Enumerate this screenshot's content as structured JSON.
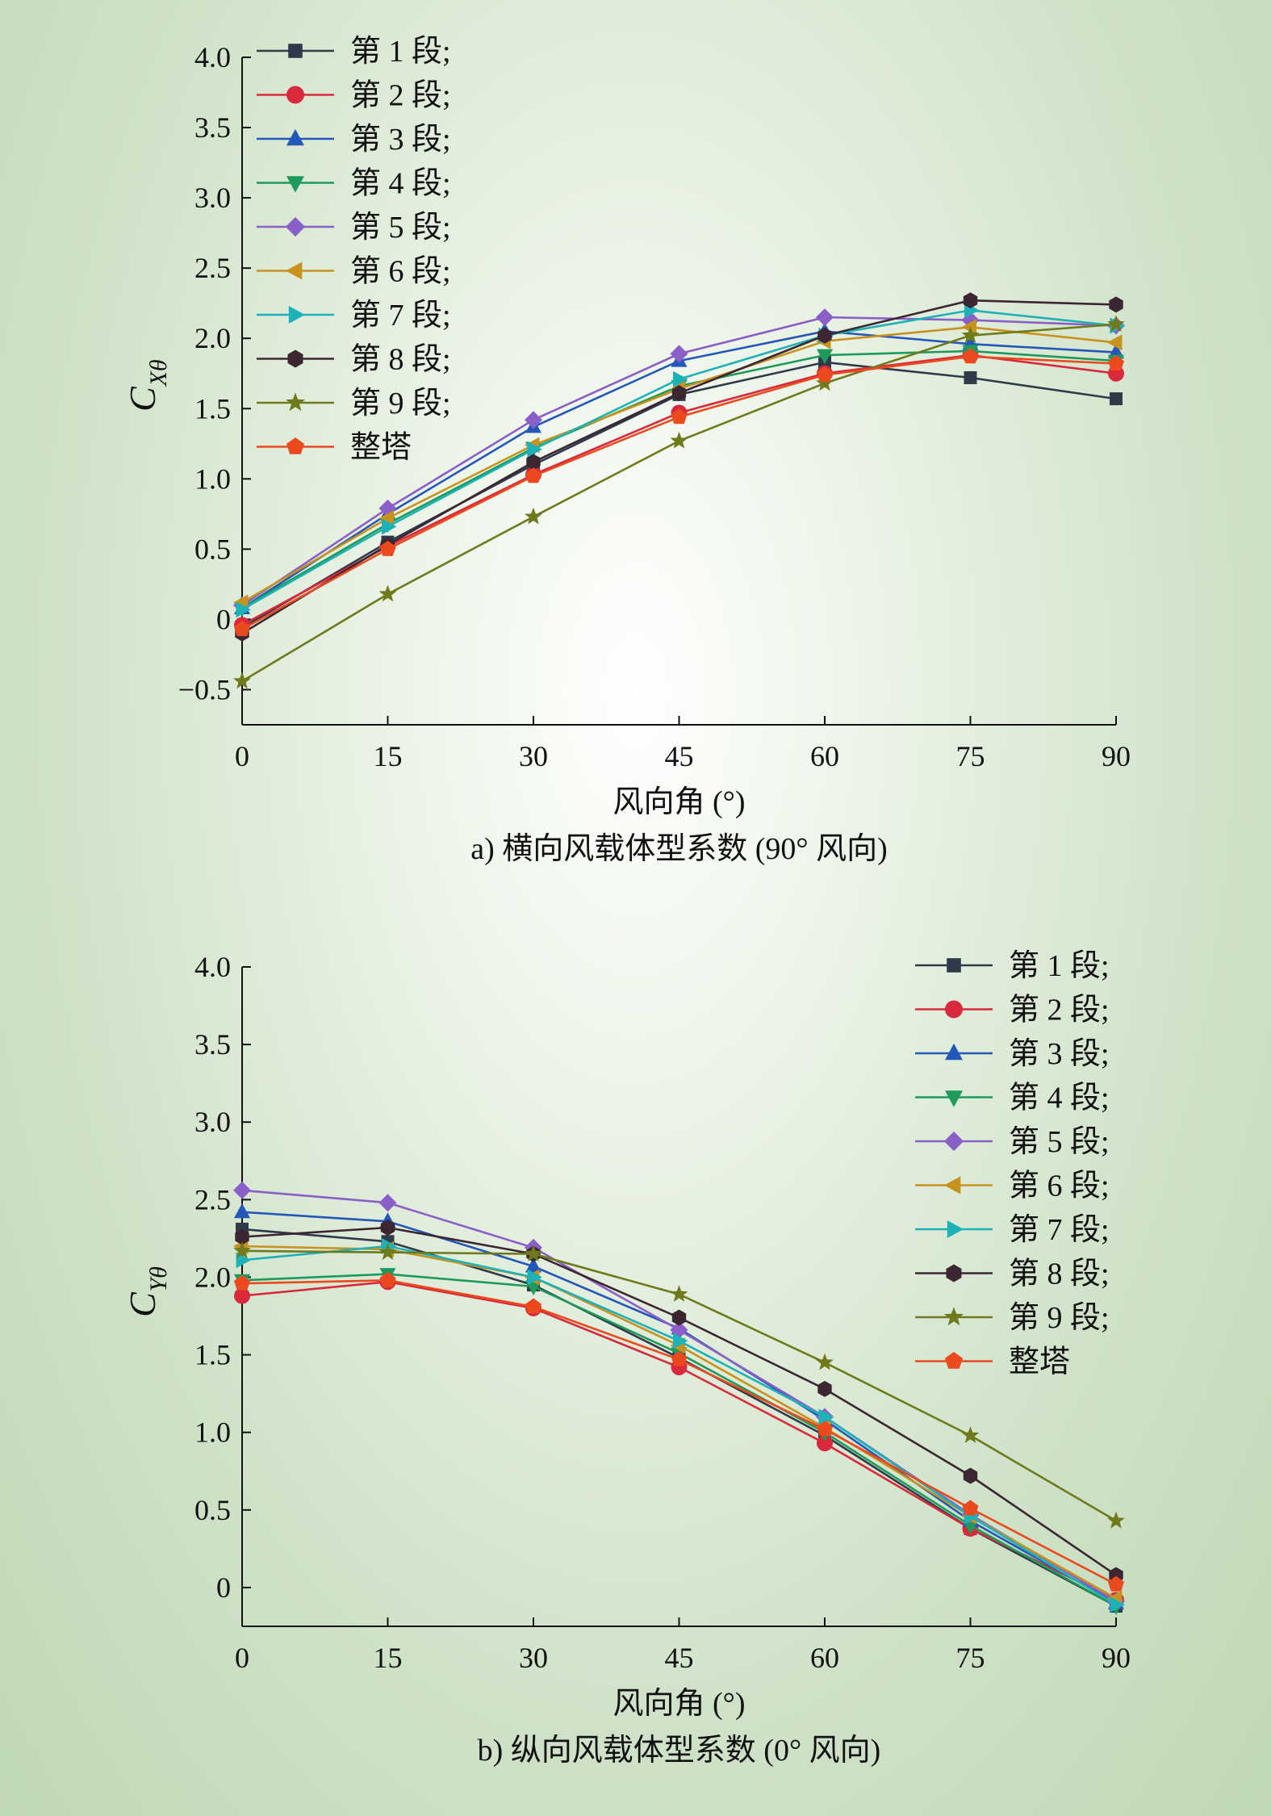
{
  "chart_data": [
    {
      "type": "line",
      "caption": "a) 横向风载体型系数 (90° 风向)",
      "xlabel": "风向角 (°)",
      "ylabel": "C",
      "ylabel_sub": "Xθ",
      "x": [
        0,
        15,
        30,
        45,
        60,
        75,
        90
      ],
      "xlim": [
        0,
        90
      ],
      "ylim": [
        -0.75,
        4.0
      ],
      "yticks": [
        -0.5,
        0,
        0.5,
        1.0,
        1.5,
        2.0,
        2.5,
        3.0,
        3.5,
        4.0
      ],
      "ytick_labels": [
        "−0.5",
        "0",
        "0.5",
        "1.0",
        "1.5",
        "2.0",
        "2.5",
        "3.0",
        "3.5",
        "4.0"
      ],
      "xtick_labels": [
        "0",
        "15",
        "30",
        "45",
        "60",
        "75",
        "90"
      ],
      "legend_position": "top-left",
      "series": [
        {
          "name": "第 1 段;",
          "color": "#2f3a4a",
          "marker": "square",
          "values": [
            -0.06,
            0.55,
            1.1,
            1.6,
            1.83,
            1.72,
            1.57
          ]
        },
        {
          "name": "第 2 段;",
          "color": "#d82a3c",
          "marker": "circle",
          "values": [
            -0.04,
            0.52,
            1.03,
            1.47,
            1.75,
            1.88,
            1.75
          ]
        },
        {
          "name": "第 3 段;",
          "color": "#2458b8",
          "marker": "triangle-up",
          "values": [
            0.08,
            0.75,
            1.37,
            1.84,
            2.05,
            1.96,
            1.9
          ]
        },
        {
          "name": "第 4 段;",
          "color": "#1e9a5a",
          "marker": "triangle-down",
          "values": [
            0.08,
            0.68,
            1.22,
            1.66,
            1.88,
            1.91,
            1.84
          ]
        },
        {
          "name": "第 5 段;",
          "color": "#8a5fc8",
          "marker": "diamond",
          "values": [
            0.1,
            0.79,
            1.42,
            1.89,
            2.15,
            2.13,
            2.09
          ]
        },
        {
          "name": "第 6 段;",
          "color": "#c8921e",
          "marker": "triangle-left",
          "values": [
            0.12,
            0.72,
            1.24,
            1.64,
            1.98,
            2.08,
            1.97
          ]
        },
        {
          "name": "第 7 段;",
          "color": "#1eb2b8",
          "marker": "triangle-right",
          "values": [
            0.07,
            0.66,
            1.21,
            1.71,
            2.02,
            2.2,
            2.09
          ]
        },
        {
          "name": "第 8 段;",
          "color": "#3b2632",
          "marker": "hexagon",
          "values": [
            -0.1,
            0.53,
            1.12,
            1.61,
            2.02,
            2.27,
            2.24
          ]
        },
        {
          "name": "第 9 段;",
          "color": "#6e7a1c",
          "marker": "star",
          "values": [
            -0.44,
            0.18,
            0.73,
            1.27,
            1.68,
            2.02,
            2.1
          ]
        },
        {
          "name": "整塔",
          "color": "#ea4a1e",
          "marker": "pentagon",
          "values": [
            -0.07,
            0.5,
            1.02,
            1.44,
            1.74,
            1.87,
            1.82
          ]
        }
      ]
    },
    {
      "type": "line",
      "caption": "b) 纵向风载体型系数 (0° 风向)",
      "xlabel": "风向角 (°)",
      "ylabel": "C",
      "ylabel_sub": "Yθ",
      "x": [
        0,
        15,
        30,
        45,
        60,
        75,
        90
      ],
      "xlim": [
        0,
        90
      ],
      "ylim": [
        -0.25,
        4.0
      ],
      "yticks": [
        0,
        0.5,
        1.0,
        1.5,
        2.0,
        2.5,
        3.0,
        3.5,
        4.0
      ],
      "ytick_labels": [
        "0",
        "0.5",
        "1.0",
        "1.5",
        "2.0",
        "2.5",
        "3.0",
        "3.5",
        "4.0"
      ],
      "xtick_labels": [
        "0",
        "15",
        "30",
        "45",
        "60",
        "75",
        "90"
      ],
      "legend_position": "top-right",
      "series": [
        {
          "name": "第 1 段;",
          "color": "#2f3a4a",
          "marker": "square",
          "values": [
            2.31,
            2.23,
            1.95,
            1.48,
            0.98,
            0.38,
            -0.12
          ]
        },
        {
          "name": "第 2 段;",
          "color": "#d82a3c",
          "marker": "circle",
          "values": [
            1.88,
            1.97,
            1.8,
            1.42,
            0.93,
            0.38,
            -0.08
          ]
        },
        {
          "name": "第 3 段;",
          "color": "#2458b8",
          "marker": "triangle-up",
          "values": [
            2.42,
            2.36,
            2.07,
            1.67,
            1.08,
            0.43,
            -0.1
          ]
        },
        {
          "name": "第 4 段;",
          "color": "#1e9a5a",
          "marker": "triangle-down",
          "values": [
            1.98,
            2.02,
            1.94,
            1.51,
            1.0,
            0.4,
            -0.12
          ]
        },
        {
          "name": "第 5 段;",
          "color": "#8a5fc8",
          "marker": "diamond",
          "values": [
            2.56,
            2.48,
            2.19,
            1.66,
            1.1,
            0.47,
            -0.09
          ]
        },
        {
          "name": "第 6 段;",
          "color": "#c8921e",
          "marker": "triangle-left",
          "values": [
            2.2,
            2.18,
            2.0,
            1.56,
            1.03,
            0.46,
            -0.07
          ]
        },
        {
          "name": "第 7 段;",
          "color": "#1eb2b8",
          "marker": "triangle-right",
          "values": [
            2.11,
            2.2,
            2.0,
            1.59,
            1.1,
            0.46,
            -0.11
          ]
        },
        {
          "name": "第 8 段;",
          "color": "#3b2632",
          "marker": "hexagon",
          "values": [
            2.26,
            2.32,
            2.15,
            1.74,
            1.28,
            0.72,
            0.08
          ]
        },
        {
          "name": "第 9 段;",
          "color": "#6e7a1c",
          "marker": "star",
          "values": [
            2.17,
            2.16,
            2.15,
            1.89,
            1.45,
            0.98,
            0.43
          ]
        },
        {
          "name": "整塔",
          "color": "#ea4a1e",
          "marker": "pentagon",
          "values": [
            1.96,
            1.98,
            1.81,
            1.47,
            1.02,
            0.51,
            0.02
          ]
        }
      ]
    }
  ]
}
